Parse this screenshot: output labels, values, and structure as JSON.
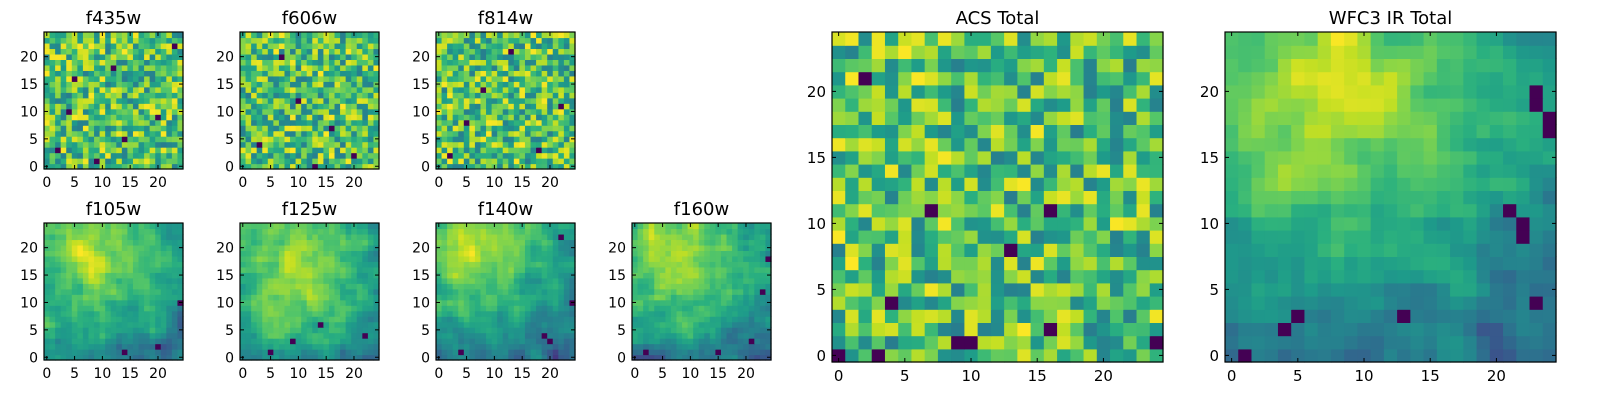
{
  "figure": {
    "background": "#ffffff"
  },
  "chart_data": [
    {
      "type": "heatmap",
      "title": "f435w",
      "grid_size": 25,
      "xlim": [
        0,
        24
      ],
      "ylim": [
        0,
        24
      ],
      "xticks": [
        0,
        5,
        10,
        15,
        20
      ],
      "yticks": [
        0,
        5,
        10,
        15,
        20
      ],
      "colormap": "viridis",
      "grid": false,
      "pattern": "noise",
      "seed": 11,
      "dark_pixels": [
        [
          5,
          16
        ],
        [
          12,
          18
        ],
        [
          20,
          9
        ],
        [
          23,
          22
        ],
        [
          2,
          3
        ],
        [
          9,
          1
        ],
        [
          14,
          5
        ],
        [
          4,
          10
        ]
      ]
    },
    {
      "type": "heatmap",
      "title": "f606w",
      "grid_size": 25,
      "xlim": [
        0,
        24
      ],
      "ylim": [
        0,
        24
      ],
      "xticks": [
        0,
        5,
        10,
        15,
        20
      ],
      "yticks": [
        0,
        5,
        10,
        15,
        20
      ],
      "colormap": "viridis",
      "grid": false,
      "pattern": "noise",
      "seed": 23,
      "dark_pixels": [
        [
          13,
          0
        ],
        [
          3,
          4
        ],
        [
          10,
          12
        ],
        [
          20,
          2
        ],
        [
          7,
          20
        ],
        [
          16,
          7
        ]
      ]
    },
    {
      "type": "heatmap",
      "title": "f814w",
      "grid_size": 25,
      "xlim": [
        0,
        24
      ],
      "ylim": [
        0,
        24
      ],
      "xticks": [
        0,
        5,
        10,
        15,
        20
      ],
      "yticks": [
        0,
        5,
        10,
        15,
        20
      ],
      "colormap": "viridis",
      "grid": false,
      "pattern": "noise",
      "seed": 37,
      "dark_pixels": [
        [
          2,
          2
        ],
        [
          18,
          3
        ],
        [
          22,
          11
        ],
        [
          8,
          14
        ],
        [
          13,
          21
        ],
        [
          5,
          8
        ]
      ]
    },
    {
      "type": "heatmap",
      "title": "f105w",
      "grid_size": 25,
      "xlim": [
        0,
        24
      ],
      "ylim": [
        0,
        24
      ],
      "xticks": [
        0,
        5,
        10,
        15,
        20
      ],
      "yticks": [
        0,
        5,
        10,
        15,
        20
      ],
      "colormap": "viridis",
      "grid": false,
      "pattern": "galaxy",
      "seed": 51,
      "peak": [
        8,
        19
      ],
      "dark_pixels": [
        [
          24,
          10
        ],
        [
          20,
          2
        ],
        [
          14,
          1
        ]
      ]
    },
    {
      "type": "heatmap",
      "title": "f125w",
      "grid_size": 25,
      "xlim": [
        0,
        24
      ],
      "ylim": [
        0,
        24
      ],
      "xticks": [
        0,
        5,
        10,
        15,
        20
      ],
      "yticks": [
        0,
        5,
        10,
        15,
        20
      ],
      "colormap": "viridis",
      "grid": false,
      "pattern": "galaxy",
      "seed": 67,
      "peak": [
        9,
        16
      ],
      "dark_pixels": [
        [
          9,
          3
        ],
        [
          14,
          6
        ],
        [
          5,
          1
        ],
        [
          22,
          4
        ]
      ]
    },
    {
      "type": "heatmap",
      "title": "f140w",
      "grid_size": 25,
      "xlim": [
        0,
        24
      ],
      "ylim": [
        0,
        24
      ],
      "xticks": [
        0,
        5,
        10,
        15,
        20
      ],
      "yticks": [
        0,
        5,
        10,
        15,
        20
      ],
      "colormap": "viridis",
      "grid": false,
      "pattern": "galaxy",
      "seed": 79,
      "peak": [
        6,
        20
      ],
      "dark_pixels": [
        [
          22,
          22
        ],
        [
          19,
          4
        ],
        [
          20,
          3
        ],
        [
          24,
          10
        ],
        [
          4,
          1
        ]
      ]
    },
    {
      "type": "heatmap",
      "title": "f160w",
      "grid_size": 25,
      "xlim": [
        0,
        24
      ],
      "ylim": [
        0,
        24
      ],
      "xticks": [
        0,
        5,
        10,
        15,
        20
      ],
      "yticks": [
        0,
        5,
        10,
        15,
        20
      ],
      "colormap": "viridis",
      "grid": false,
      "pattern": "galaxy",
      "seed": 97,
      "peak": [
        7,
        20
      ],
      "dark_pixels": [
        [
          21,
          3
        ],
        [
          24,
          18
        ],
        [
          15,
          1
        ],
        [
          2,
          1
        ],
        [
          23,
          12
        ]
      ]
    },
    {
      "type": "heatmap",
      "title": "ACS Total",
      "grid_size": 25,
      "xlim": [
        0,
        24
      ],
      "ylim": [
        0,
        24
      ],
      "xticks": [
        0,
        5,
        10,
        15,
        20
      ],
      "yticks": [
        0,
        5,
        10,
        15,
        20
      ],
      "colormap": "viridis",
      "grid": false,
      "pattern": "noise",
      "seed": 131,
      "dark_pixels": [
        [
          2,
          21
        ],
        [
          4,
          4
        ],
        [
          10,
          1
        ],
        [
          9,
          1
        ],
        [
          16,
          2
        ],
        [
          24,
          1
        ],
        [
          3,
          0
        ],
        [
          0,
          0
        ],
        [
          7,
          11
        ],
        [
          13,
          8
        ],
        [
          16,
          11
        ]
      ]
    },
    {
      "type": "heatmap",
      "title": "WFC3 IR Total",
      "grid_size": 25,
      "xlim": [
        0,
        24
      ],
      "ylim": [
        0,
        24
      ],
      "xticks": [
        0,
        5,
        10,
        15,
        20
      ],
      "yticks": [
        0,
        5,
        10,
        15,
        20
      ],
      "colormap": "viridis",
      "grid": false,
      "pattern": "galaxy",
      "seed": 149,
      "peak": [
        7,
        21
      ],
      "dark_pixels": [
        [
          1,
          0
        ],
        [
          22,
          10
        ],
        [
          22,
          9
        ],
        [
          21,
          11
        ],
        [
          24,
          17
        ],
        [
          24,
          18
        ],
        [
          23,
          19
        ],
        [
          23,
          20
        ],
        [
          23,
          4
        ],
        [
          4,
          2
        ],
        [
          13,
          3
        ],
        [
          5,
          3
        ]
      ]
    }
  ]
}
